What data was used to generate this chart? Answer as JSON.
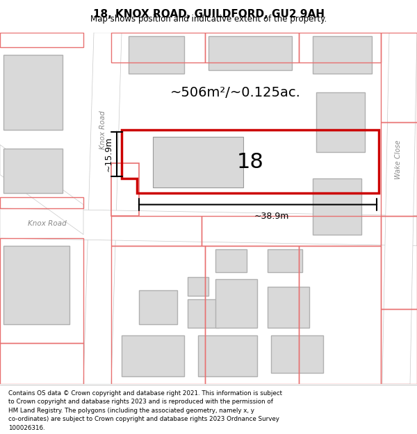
{
  "title": "18, KNOX ROAD, GUILDFORD, GU2 9AH",
  "subtitle": "Map shows position and indicative extent of the property.",
  "footer_lines": [
    "Contains OS data © Crown copyright and database right 2021. This information is subject",
    "to Crown copyright and database rights 2023 and is reproduced with the permission of",
    "HM Land Registry. The polygons (including the associated geometry, namely x, y",
    "co-ordinates) are subject to Crown copyright and database rights 2023 Ordnance Survey",
    "100026316."
  ],
  "area_label": "~506m²/~0.125ac.",
  "number_label": "18",
  "width_label": "~38.9m",
  "height_label": "~15.9m",
  "map_background": "#f0eeee",
  "building_fill": "#d9d9d9",
  "building_outline": "#b0b0b0",
  "road_fill": "#ffffff",
  "road_outline": "#c8c8c8",
  "highlight_color": "#cc0000",
  "pink_outline": "#e87070",
  "text_color": "#000000",
  "road_label_color": "#888888"
}
